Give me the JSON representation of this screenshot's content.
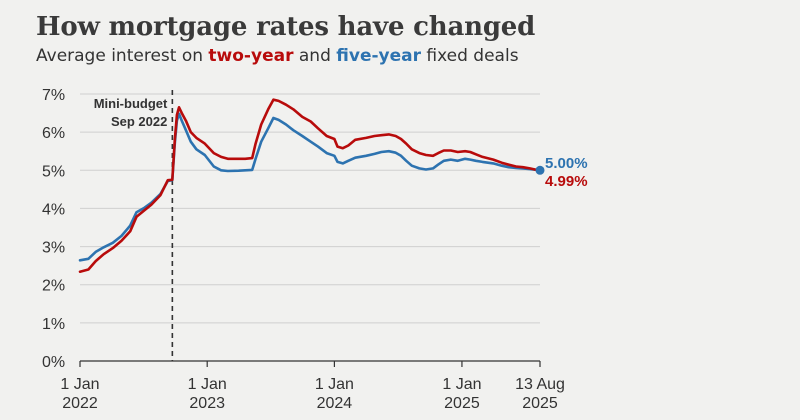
{
  "title": "How mortgage rates have changed",
  "subtitle": {
    "pre": "Average interest on ",
    "two": "two-year",
    "mid": " and ",
    "five": "five-year",
    "post": " fixed deals"
  },
  "colors": {
    "two_year": "#b80b0b",
    "five_year": "#2d73b0",
    "grid": "#cfcfcf",
    "axis": "#333333",
    "background": "#f1f1ef"
  },
  "chart_data": {
    "type": "line",
    "title": "How mortgage rates have changed",
    "subtitle": "Average interest on two-year and five-year fixed deals",
    "xlabel": "",
    "ylabel": "",
    "ylim": [
      0,
      7
    ],
    "xlim": [
      "2022-01-01",
      "2025-08-13"
    ],
    "grid": true,
    "y_ticks": [
      "0%",
      "1%",
      "2%",
      "3%",
      "4%",
      "5%",
      "6%",
      "7%"
    ],
    "x_ticks": [
      {
        "date": "2022-01-01",
        "line1": "1 Jan",
        "line2": "2022"
      },
      {
        "date": "2023-01-01",
        "line1": "1 Jan",
        "line2": "2023"
      },
      {
        "date": "2024-01-01",
        "line1": "1 Jan",
        "line2": "2024"
      },
      {
        "date": "2025-01-01",
        "line1": "1 Jan",
        "line2": "2025"
      },
      {
        "date": "2025-08-13",
        "line1": "13 Aug",
        "line2": "2025"
      }
    ],
    "annotation": {
      "date": "2022-09-23",
      "line1": "Mini-budget",
      "line2": "Sep 2022"
    },
    "series": [
      {
        "name": "two-year",
        "color": "#b80b0b",
        "end_label": "4.99%",
        "points": [
          [
            "2022-01-01",
            2.34
          ],
          [
            "2022-01-25",
            2.4
          ],
          [
            "2022-02-15",
            2.62
          ],
          [
            "2022-03-10",
            2.8
          ],
          [
            "2022-04-05",
            2.96
          ],
          [
            "2022-04-30",
            3.15
          ],
          [
            "2022-05-25",
            3.4
          ],
          [
            "2022-06-12",
            3.78
          ],
          [
            "2022-07-05",
            3.95
          ],
          [
            "2022-07-25",
            4.1
          ],
          [
            "2022-08-20",
            4.35
          ],
          [
            "2022-09-10",
            4.74
          ],
          [
            "2022-09-23",
            4.75
          ],
          [
            "2022-09-30",
            5.8
          ],
          [
            "2022-10-06",
            6.45
          ],
          [
            "2022-10-12",
            6.65
          ],
          [
            "2022-10-20",
            6.5
          ],
          [
            "2022-11-01",
            6.3
          ],
          [
            "2022-11-15",
            6.0
          ],
          [
            "2022-12-01",
            5.85
          ],
          [
            "2022-12-25",
            5.7
          ],
          [
            "2023-01-20",
            5.45
          ],
          [
            "2023-02-10",
            5.35
          ],
          [
            "2023-03-01",
            5.3
          ],
          [
            "2023-04-01",
            5.3
          ],
          [
            "2023-04-20",
            5.3
          ],
          [
            "2023-05-10",
            5.32
          ],
          [
            "2023-05-20",
            5.7
          ],
          [
            "2023-06-05",
            6.2
          ],
          [
            "2023-06-25",
            6.6
          ],
          [
            "2023-07-10",
            6.85
          ],
          [
            "2023-07-25",
            6.82
          ],
          [
            "2023-08-15",
            6.72
          ],
          [
            "2023-09-05",
            6.6
          ],
          [
            "2023-10-01",
            6.4
          ],
          [
            "2023-10-25",
            6.28
          ],
          [
            "2023-11-15",
            6.1
          ],
          [
            "2023-12-10",
            5.9
          ],
          [
            "2024-01-01",
            5.82
          ],
          [
            "2024-01-10",
            5.62
          ],
          [
            "2024-01-25",
            5.58
          ],
          [
            "2024-02-10",
            5.65
          ],
          [
            "2024-03-01",
            5.8
          ],
          [
            "2024-04-01",
            5.85
          ],
          [
            "2024-04-25",
            5.9
          ],
          [
            "2024-05-15",
            5.92
          ],
          [
            "2024-06-05",
            5.94
          ],
          [
            "2024-06-25",
            5.9
          ],
          [
            "2024-07-10",
            5.82
          ],
          [
            "2024-07-25",
            5.7
          ],
          [
            "2024-08-10",
            5.55
          ],
          [
            "2024-09-01",
            5.45
          ],
          [
            "2024-09-20",
            5.4
          ],
          [
            "2024-10-10",
            5.38
          ],
          [
            "2024-10-25",
            5.45
          ],
          [
            "2024-11-10",
            5.52
          ],
          [
            "2024-11-30",
            5.52
          ],
          [
            "2024-12-20",
            5.48
          ],
          [
            "2025-01-10",
            5.5
          ],
          [
            "2025-01-25",
            5.48
          ],
          [
            "2025-02-10",
            5.42
          ],
          [
            "2025-03-01",
            5.35
          ],
          [
            "2025-04-01",
            5.28
          ],
          [
            "2025-04-25",
            5.2
          ],
          [
            "2025-05-15",
            5.15
          ],
          [
            "2025-06-05",
            5.1
          ],
          [
            "2025-06-25",
            5.08
          ],
          [
            "2025-07-15",
            5.05
          ],
          [
            "2025-08-13",
            4.99
          ]
        ]
      },
      {
        "name": "five-year",
        "color": "#2d73b0",
        "end_label": "5.00%",
        "points": [
          [
            "2022-01-01",
            2.64
          ],
          [
            "2022-01-25",
            2.68
          ],
          [
            "2022-02-15",
            2.86
          ],
          [
            "2022-03-10",
            2.98
          ],
          [
            "2022-04-05",
            3.1
          ],
          [
            "2022-04-30",
            3.28
          ],
          [
            "2022-05-25",
            3.55
          ],
          [
            "2022-06-12",
            3.9
          ],
          [
            "2022-07-05",
            4.02
          ],
          [
            "2022-07-25",
            4.15
          ],
          [
            "2022-08-20",
            4.38
          ],
          [
            "2022-09-10",
            4.72
          ],
          [
            "2022-09-23",
            4.74
          ],
          [
            "2022-09-30",
            5.7
          ],
          [
            "2022-10-06",
            6.3
          ],
          [
            "2022-10-12",
            6.48
          ],
          [
            "2022-10-20",
            6.3
          ],
          [
            "2022-11-01",
            6.05
          ],
          [
            "2022-11-15",
            5.75
          ],
          [
            "2022-12-01",
            5.55
          ],
          [
            "2022-12-25",
            5.4
          ],
          [
            "2023-01-20",
            5.1
          ],
          [
            "2023-02-10",
            5.0
          ],
          [
            "2023-03-01",
            4.98
          ],
          [
            "2023-04-01",
            4.99
          ],
          [
            "2023-04-20",
            5.0
          ],
          [
            "2023-05-10",
            5.01
          ],
          [
            "2023-05-20",
            5.3
          ],
          [
            "2023-06-05",
            5.75
          ],
          [
            "2023-06-25",
            6.1
          ],
          [
            "2023-07-10",
            6.37
          ],
          [
            "2023-07-25",
            6.32
          ],
          [
            "2023-08-15",
            6.2
          ],
          [
            "2023-09-05",
            6.05
          ],
          [
            "2023-10-01",
            5.9
          ],
          [
            "2023-10-25",
            5.75
          ],
          [
            "2023-11-15",
            5.62
          ],
          [
            "2023-12-10",
            5.45
          ],
          [
            "2024-01-01",
            5.38
          ],
          [
            "2024-01-10",
            5.22
          ],
          [
            "2024-01-25",
            5.18
          ],
          [
            "2024-02-10",
            5.25
          ],
          [
            "2024-03-01",
            5.33
          ],
          [
            "2024-04-01",
            5.38
          ],
          [
            "2024-04-25",
            5.43
          ],
          [
            "2024-05-15",
            5.48
          ],
          [
            "2024-06-05",
            5.5
          ],
          [
            "2024-06-25",
            5.46
          ],
          [
            "2024-07-10",
            5.38
          ],
          [
            "2024-07-25",
            5.25
          ],
          [
            "2024-08-10",
            5.12
          ],
          [
            "2024-09-01",
            5.05
          ],
          [
            "2024-09-20",
            5.02
          ],
          [
            "2024-10-10",
            5.05
          ],
          [
            "2024-10-25",
            5.15
          ],
          [
            "2024-11-10",
            5.25
          ],
          [
            "2024-11-30",
            5.28
          ],
          [
            "2024-12-20",
            5.25
          ],
          [
            "2025-01-10",
            5.3
          ],
          [
            "2025-01-25",
            5.28
          ],
          [
            "2025-02-10",
            5.25
          ],
          [
            "2025-03-01",
            5.22
          ],
          [
            "2025-04-01",
            5.18
          ],
          [
            "2025-04-25",
            5.12
          ],
          [
            "2025-05-15",
            5.08
          ],
          [
            "2025-06-05",
            5.06
          ],
          [
            "2025-06-25",
            5.05
          ],
          [
            "2025-07-15",
            5.03
          ],
          [
            "2025-08-13",
            5.0
          ]
        ]
      }
    ]
  }
}
